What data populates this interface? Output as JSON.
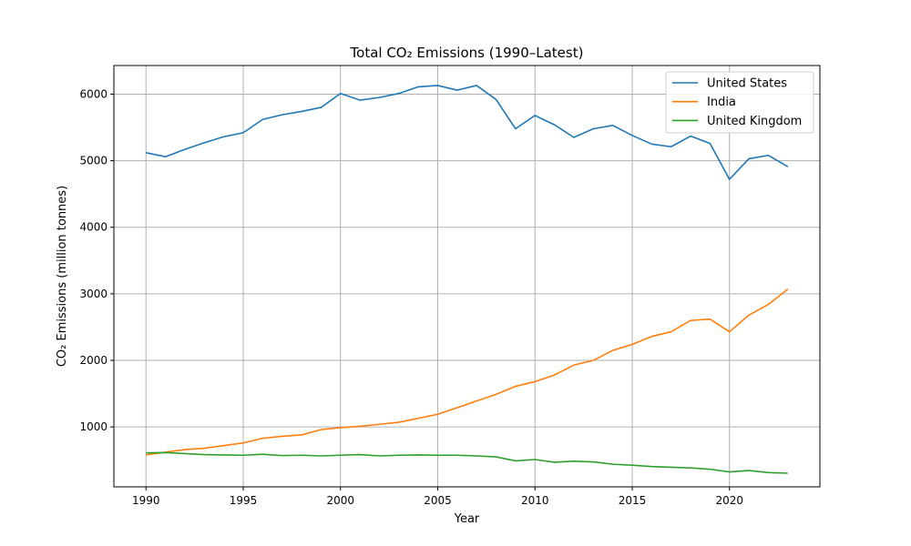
{
  "chart_data": {
    "type": "line",
    "title": "Total CO₂ Emissions (1990–Latest)",
    "xlabel": "Year",
    "ylabel": "CO₂ Emissions (million tonnes)",
    "xlim": [
      1988.35,
      2024.65
    ],
    "ylim": [
      100,
      6430
    ],
    "xticks": [
      1990,
      1995,
      2000,
      2005,
      2010,
      2015,
      2020
    ],
    "yticks": [
      1000,
      2000,
      3000,
      4000,
      5000,
      6000
    ],
    "grid": true,
    "legend_position": "top-right",
    "x": [
      1990,
      1991,
      1992,
      1993,
      1994,
      1995,
      1996,
      1997,
      1998,
      1999,
      2000,
      2001,
      2002,
      2003,
      2004,
      2005,
      2006,
      2007,
      2008,
      2009,
      2010,
      2011,
      2012,
      2013,
      2014,
      2015,
      2016,
      2017,
      2018,
      2019,
      2020,
      2021,
      2022,
      2023
    ],
    "series": [
      {
        "name": "United States",
        "color": "#1f77b4",
        "values": [
          5120,
          5060,
          5170,
          5270,
          5360,
          5420,
          5620,
          5690,
          5740,
          5800,
          6010,
          5910,
          5950,
          6010,
          6110,
          6130,
          6060,
          6130,
          5920,
          5480,
          5680,
          5540,
          5350,
          5480,
          5530,
          5380,
          5250,
          5210,
          5370,
          5260,
          4720,
          5030,
          5080,
          4910
        ]
      },
      {
        "name": "India",
        "color": "#ff7f0e",
        "values": [
          580,
          620,
          660,
          680,
          720,
          760,
          830,
          860,
          880,
          960,
          990,
          1010,
          1040,
          1070,
          1130,
          1190,
          1290,
          1390,
          1490,
          1610,
          1680,
          1780,
          1930,
          2000,
          2150,
          2240,
          2360,
          2430,
          2600,
          2620,
          2430,
          2680,
          2840,
          3070
        ]
      },
      {
        "name": "United Kingdom",
        "color": "#2ca02c",
        "values": [
          610,
          615,
          600,
          585,
          580,
          575,
          590,
          570,
          575,
          565,
          575,
          585,
          565,
          575,
          580,
          575,
          575,
          565,
          550,
          490,
          510,
          470,
          485,
          475,
          440,
          425,
          405,
          395,
          385,
          365,
          325,
          345,
          315,
          305
        ]
      }
    ]
  }
}
